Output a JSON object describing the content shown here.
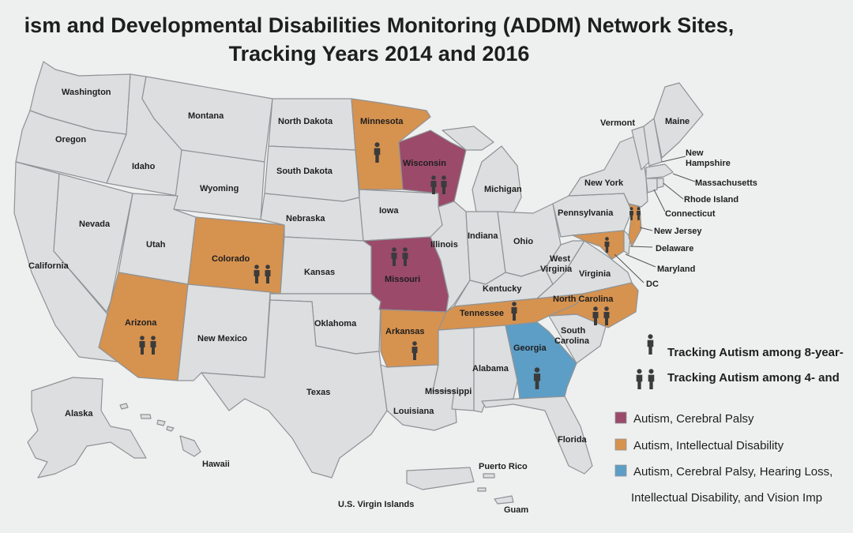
{
  "title": {
    "line1": "ism and Developmental Disabilities Monitoring (ADDM) Network Sites,",
    "line2": "Tracking Years 2014 and 2016"
  },
  "colors": {
    "default": "#dcdedf",
    "autism_cerebral_palsy": "#9b4a6a",
    "autism_intellectual_disability": "#d6924f",
    "autism_cp_hearing_intellectual_vision": "#5d9ec6",
    "person_icon": "#3b3b3b",
    "border": "#8f9396"
  },
  "states": {
    "washington": {
      "name": "Washington",
      "category": "none"
    },
    "oregon": {
      "name": "Oregon",
      "category": "none"
    },
    "california": {
      "name": "California",
      "category": "none"
    },
    "idaho": {
      "name": "Idaho",
      "category": "none"
    },
    "nevada": {
      "name": "Nevada",
      "category": "none"
    },
    "montana": {
      "name": "Montana",
      "category": "none"
    },
    "wyoming": {
      "name": "Wyoming",
      "category": "none"
    },
    "utah": {
      "name": "Utah",
      "category": "none"
    },
    "arizona": {
      "name": "Arizona",
      "category": "autism_intellectual_disability",
      "tracking": "4-and-8"
    },
    "colorado": {
      "name": "Colorado",
      "category": "autism_intellectual_disability",
      "tracking": "4-and-8"
    },
    "new_mexico": {
      "name": "New Mexico",
      "category": "none"
    },
    "north_dakota": {
      "name": "North Dakota",
      "category": "none"
    },
    "south_dakota": {
      "name": "South Dakota",
      "category": "none"
    },
    "nebraska": {
      "name": "Nebraska",
      "category": "none"
    },
    "kansas": {
      "name": "Kansas",
      "category": "none"
    },
    "oklahoma": {
      "name": "Oklahoma",
      "category": "none"
    },
    "texas": {
      "name": "Texas",
      "category": "none"
    },
    "minnesota": {
      "name": "Minnesota",
      "category": "autism_intellectual_disability",
      "tracking": "8"
    },
    "iowa": {
      "name": "Iowa",
      "category": "none"
    },
    "missouri": {
      "name": "Missouri",
      "category": "autism_cerebral_palsy",
      "tracking": "4-and-8"
    },
    "arkansas": {
      "name": "Arkansas",
      "category": "autism_intellectual_disability",
      "tracking": "8"
    },
    "louisiana": {
      "name": "Louisiana",
      "category": "none"
    },
    "wisconsin": {
      "name": "Wisconsin",
      "category": "autism_cerebral_palsy",
      "tracking": "4-and-8"
    },
    "illinois": {
      "name": "Illinois",
      "category": "none"
    },
    "michigan": {
      "name": "Michigan",
      "category": "none"
    },
    "indiana": {
      "name": "Indiana",
      "category": "none"
    },
    "ohio": {
      "name": "Ohio",
      "category": "none"
    },
    "kentucky": {
      "name": "Kentucky",
      "category": "none"
    },
    "tennessee": {
      "name": "Tennessee",
      "category": "autism_intellectual_disability",
      "tracking": "8"
    },
    "mississippi": {
      "name": "Mississippi",
      "category": "none"
    },
    "alabama": {
      "name": "Alabama",
      "category": "none"
    },
    "georgia": {
      "name": "Georgia",
      "category": "autism_cp_hearing_intellectual_vision",
      "tracking": "8"
    },
    "florida": {
      "name": "Florida",
      "category": "none"
    },
    "south_carolina": {
      "name": "South\nCarolina",
      "line1": "South",
      "line2": "Carolina",
      "category": "none"
    },
    "north_carolina": {
      "name": "North Carolina",
      "category": "autism_intellectual_disability",
      "tracking": "4-and-8"
    },
    "virginia": {
      "name": "Virginia",
      "category": "none"
    },
    "west_virginia": {
      "name": "West Virginia",
      "line1": "West",
      "line2": "Virginia",
      "category": "none"
    },
    "pennsylvania": {
      "name": "Pennsylvania",
      "category": "none"
    },
    "new_york": {
      "name": "New York",
      "category": "none"
    },
    "new_jersey": {
      "name": "New Jersey",
      "category": "autism_intellectual_disability",
      "tracking": "4-and-8"
    },
    "maryland": {
      "name": "Maryland",
      "category": "autism_intellectual_disability",
      "tracking": "8"
    },
    "delaware": {
      "name": "Delaware",
      "category": "none"
    },
    "dc": {
      "name": "DC",
      "category": "none"
    },
    "vermont": {
      "name": "Vermont",
      "category": "none"
    },
    "new_hampshire": {
      "name": "New Hampshire",
      "line1": "New",
      "line2": "Hampshire",
      "category": "none"
    },
    "maine": {
      "name": "Maine",
      "category": "none"
    },
    "massachusetts": {
      "name": "Massachusetts",
      "category": "none"
    },
    "rhode_island": {
      "name": "Rhode Island",
      "category": "none"
    },
    "connecticut": {
      "name": "Connecticut",
      "category": "none"
    },
    "alaska": {
      "name": "Alaska",
      "category": "none"
    },
    "hawaii": {
      "name": "Hawaii",
      "category": "none"
    },
    "puerto_rico": {
      "name": "Puerto Rico",
      "category": "none"
    },
    "us_virgin_islands": {
      "name": "U.S. Virgin Islands",
      "category": "none"
    },
    "guam": {
      "name": "Guam",
      "category": "none"
    }
  },
  "legend": {
    "tracking_8": {
      "icon": "single-person-icon",
      "label": "Tracking Autism among 8-year-"
    },
    "tracking_4_8": {
      "icon": "two-persons-icon",
      "label": "Tracking Autism among 4- and"
    },
    "categories": [
      {
        "key": "autism_cerebral_palsy",
        "label": "Autism, Cerebral Palsy"
      },
      {
        "key": "autism_intellectual_disability",
        "label": "Autism, Intellectual Disability"
      },
      {
        "key": "autism_cp_hearing_intellectual_vision",
        "label": "Autism, Cerebral Palsy, Hearing Loss,",
        "label2": "Intellectual Disability, and Vision Imp"
      }
    ]
  }
}
